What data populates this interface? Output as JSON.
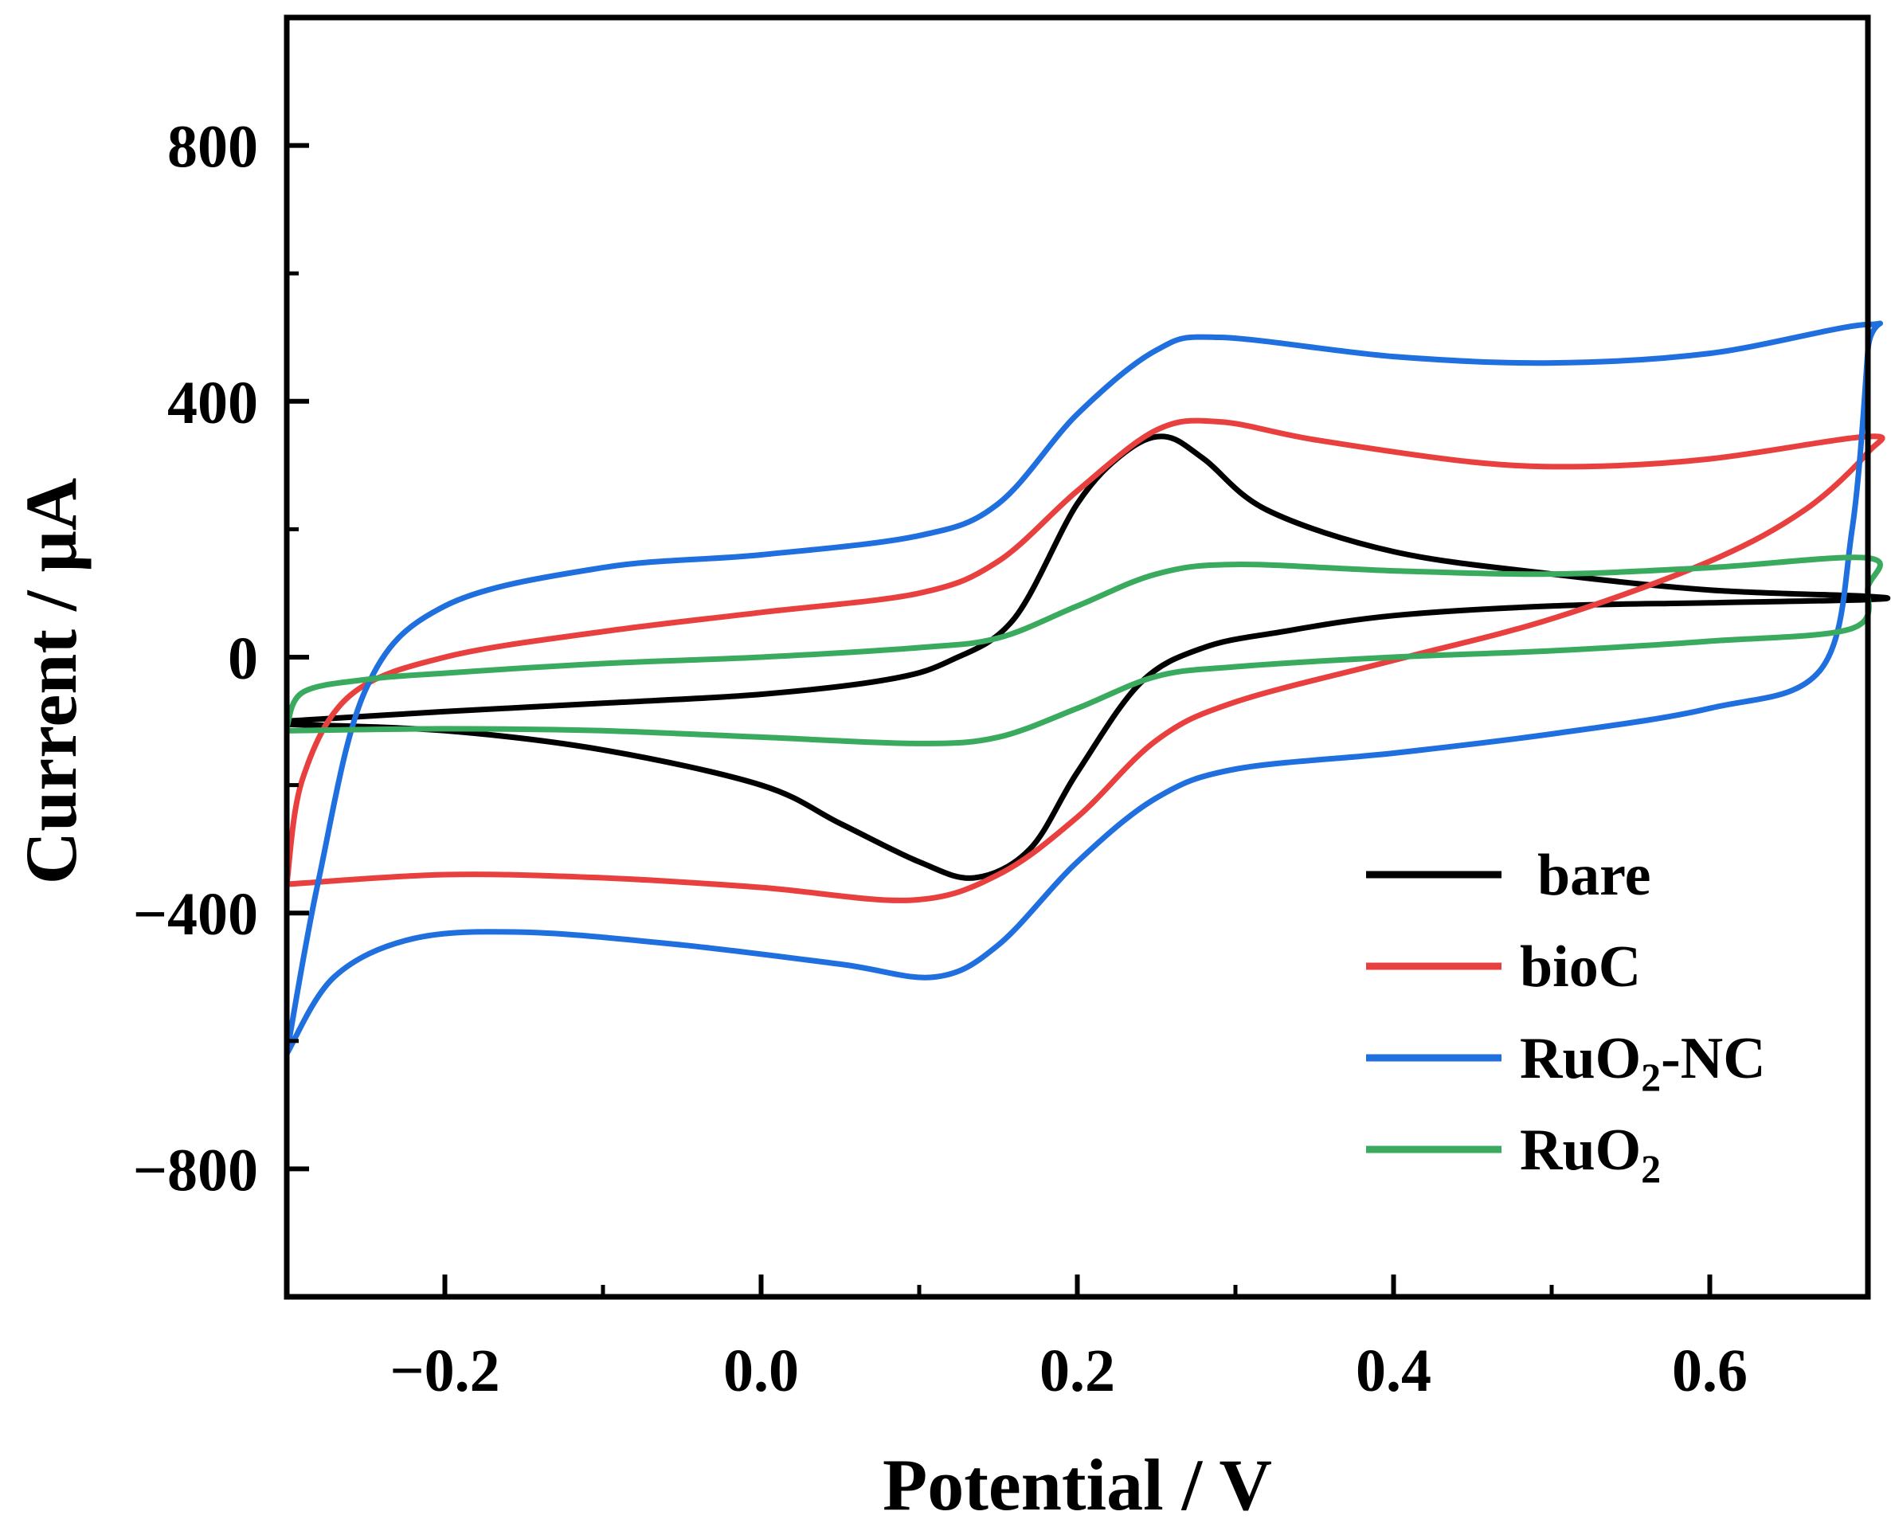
{
  "chart_data": {
    "type": "line",
    "title": "",
    "xlabel": "Potential / V",
    "ylabel": "Current / μA",
    "xlim": [
      -0.3,
      0.7
    ],
    "ylim": [
      -1000,
      1000
    ],
    "xticks": [
      -0.2,
      0.0,
      0.2,
      0.4,
      0.6
    ],
    "xtick_labels": [
      "−0.2",
      "0.0",
      "0.2",
      "0.4",
      "0.6"
    ],
    "yticks": [
      -800,
      -400,
      0,
      400,
      800
    ],
    "ytick_labels": [
      "−800",
      "−400",
      "0",
      "400",
      "800"
    ],
    "legend_position": "bottom-right",
    "series": [
      {
        "name": "bare",
        "legend_main": "bare",
        "legend_sub": "",
        "legend_tail": "",
        "color": "#000000",
        "points": [
          [
            -0.3,
            -100
          ],
          [
            -0.2,
            -85
          ],
          [
            -0.1,
            -72
          ],
          [
            0.0,
            -58
          ],
          [
            0.08,
            -35
          ],
          [
            0.12,
            -5
          ],
          [
            0.16,
            60
          ],
          [
            0.2,
            240
          ],
          [
            0.23,
            320
          ],
          [
            0.255,
            345
          ],
          [
            0.28,
            310
          ],
          [
            0.32,
            230
          ],
          [
            0.4,
            165
          ],
          [
            0.5,
            130
          ],
          [
            0.6,
            105
          ],
          [
            0.7,
            95
          ],
          [
            0.7,
            90
          ],
          [
            0.6,
            85
          ],
          [
            0.5,
            80
          ],
          [
            0.4,
            65
          ],
          [
            0.33,
            40
          ],
          [
            0.28,
            15
          ],
          [
            0.24,
            -40
          ],
          [
            0.2,
            -180
          ],
          [
            0.17,
            -300
          ],
          [
            0.135,
            -345
          ],
          [
            0.1,
            -320
          ],
          [
            0.05,
            -260
          ],
          [
            0.0,
            -200
          ],
          [
            -0.1,
            -145
          ],
          [
            -0.2,
            -115
          ],
          [
            -0.3,
            -105
          ]
        ]
      },
      {
        "name": "bioC",
        "legend_main": "bioC",
        "legend_sub": "",
        "legend_tail": "",
        "color": "#e8403f",
        "points": [
          [
            -0.3,
            -355
          ],
          [
            -0.29,
            -190
          ],
          [
            -0.26,
            -60
          ],
          [
            -0.2,
            0
          ],
          [
            -0.1,
            40
          ],
          [
            0.0,
            70
          ],
          [
            0.1,
            100
          ],
          [
            0.15,
            150
          ],
          [
            0.2,
            260
          ],
          [
            0.25,
            355
          ],
          [
            0.29,
            368
          ],
          [
            0.35,
            340
          ],
          [
            0.45,
            305
          ],
          [
            0.52,
            298
          ],
          [
            0.6,
            310
          ],
          [
            0.7,
            345
          ],
          [
            0.7,
            320
          ],
          [
            0.66,
            230
          ],
          [
            0.6,
            150
          ],
          [
            0.5,
            60
          ],
          [
            0.4,
            -5
          ],
          [
            0.3,
            -70
          ],
          [
            0.25,
            -130
          ],
          [
            0.2,
            -250
          ],
          [
            0.15,
            -340
          ],
          [
            0.095,
            -380
          ],
          [
            0.0,
            -360
          ],
          [
            -0.1,
            -345
          ],
          [
            -0.2,
            -340
          ],
          [
            -0.3,
            -355
          ]
        ]
      },
      {
        "name": "RuO2-NC",
        "legend_main": "RuO",
        "legend_sub": "2",
        "legend_tail": "-NC",
        "color": "#1f6fde",
        "points": [
          [
            -0.3,
            -620
          ],
          [
            -0.28,
            -350
          ],
          [
            -0.25,
            -50
          ],
          [
            -0.2,
            80
          ],
          [
            -0.1,
            140
          ],
          [
            0.0,
            160
          ],
          [
            0.1,
            190
          ],
          [
            0.15,
            240
          ],
          [
            0.2,
            380
          ],
          [
            0.25,
            480
          ],
          [
            0.29,
            500
          ],
          [
            0.4,
            470
          ],
          [
            0.5,
            460
          ],
          [
            0.6,
            475
          ],
          [
            0.7,
            520
          ],
          [
            0.7,
            480
          ],
          [
            0.69,
            200
          ],
          [
            0.67,
            -20
          ],
          [
            0.6,
            -80
          ],
          [
            0.5,
            -120
          ],
          [
            0.4,
            -150
          ],
          [
            0.3,
            -175
          ],
          [
            0.25,
            -220
          ],
          [
            0.2,
            -320
          ],
          [
            0.15,
            -450
          ],
          [
            0.11,
            -500
          ],
          [
            0.05,
            -480
          ],
          [
            -0.05,
            -450
          ],
          [
            -0.15,
            -430
          ],
          [
            -0.22,
            -440
          ],
          [
            -0.27,
            -500
          ],
          [
            -0.3,
            -620
          ]
        ]
      },
      {
        "name": "RuO2",
        "legend_main": "RuO",
        "legend_sub": "2",
        "legend_tail": "",
        "color": "#3aaa5e",
        "points": [
          [
            -0.3,
            -110
          ],
          [
            -0.29,
            -55
          ],
          [
            -0.25,
            -35
          ],
          [
            -0.2,
            -25
          ],
          [
            -0.1,
            -10
          ],
          [
            0.0,
            0
          ],
          [
            0.1,
            15
          ],
          [
            0.15,
            30
          ],
          [
            0.2,
            80
          ],
          [
            0.25,
            130
          ],
          [
            0.3,
            145
          ],
          [
            0.4,
            135
          ],
          [
            0.5,
            130
          ],
          [
            0.6,
            140
          ],
          [
            0.7,
            155
          ],
          [
            0.7,
            110
          ],
          [
            0.69,
            45
          ],
          [
            0.6,
            25
          ],
          [
            0.5,
            10
          ],
          [
            0.4,
            0
          ],
          [
            0.3,
            -15
          ],
          [
            0.25,
            -30
          ],
          [
            0.2,
            -80
          ],
          [
            0.15,
            -125
          ],
          [
            0.1,
            -135
          ],
          [
            0.0,
            -125
          ],
          [
            -0.1,
            -115
          ],
          [
            -0.2,
            -112
          ],
          [
            -0.3,
            -115
          ]
        ]
      }
    ]
  }
}
